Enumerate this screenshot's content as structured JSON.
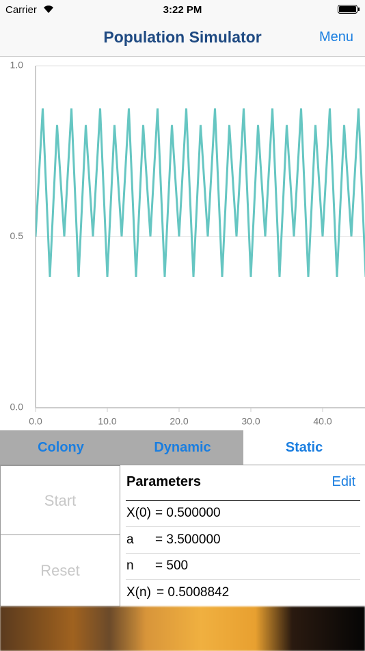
{
  "status_bar": {
    "carrier": "Carrier",
    "time": "3:22 PM"
  },
  "nav_bar": {
    "title": "Population Simulator",
    "menu": "Menu"
  },
  "chart_data": {
    "type": "line",
    "color": "#66c6c2",
    "grid": true,
    "x": [
      0,
      1,
      2,
      3,
      4,
      5,
      6,
      7,
      8,
      9,
      10,
      11,
      12,
      13,
      14,
      15,
      16,
      17,
      18,
      19,
      20,
      21,
      22,
      23,
      24,
      25,
      26,
      27,
      28,
      29,
      30,
      31,
      32,
      33,
      34,
      35,
      36,
      37,
      38,
      39,
      40,
      41,
      42,
      43,
      44,
      45,
      46
    ],
    "values": [
      0.5,
      0.875,
      0.3828,
      0.8269,
      0.5009,
      0.875,
      0.3828,
      0.8269,
      0.5009,
      0.875,
      0.3828,
      0.8269,
      0.5009,
      0.875,
      0.3828,
      0.8269,
      0.5009,
      0.875,
      0.3828,
      0.8269,
      0.5009,
      0.875,
      0.3828,
      0.8269,
      0.5009,
      0.875,
      0.3828,
      0.8269,
      0.5009,
      0.875,
      0.3828,
      0.8269,
      0.5009,
      0.875,
      0.3828,
      0.8269,
      0.5009,
      0.875,
      0.3828,
      0.8269,
      0.5009,
      0.875,
      0.3828,
      0.8269,
      0.5009,
      0.875,
      0.3828
    ],
    "xlim": [
      0,
      46
    ],
    "ylim": [
      0,
      1
    ],
    "xticks": [
      {
        "value": 0,
        "label": "0.0"
      },
      {
        "value": 10,
        "label": "10.0"
      },
      {
        "value": 20,
        "label": "20.0"
      },
      {
        "value": 30,
        "label": "30.0"
      },
      {
        "value": 40,
        "label": "40.0"
      }
    ],
    "yticks": [
      {
        "value": 0,
        "label": "0.0"
      },
      {
        "value": 0.5,
        "label": "0.5"
      },
      {
        "value": 1,
        "label": "1.0"
      }
    ]
  },
  "tabs": [
    "Colony",
    "Dynamic",
    "Static"
  ],
  "buttons": [
    "Start",
    "Reset"
  ],
  "parameters": {
    "title": "Parameters",
    "edit": "Edit",
    "rows": [
      [
        "X(0)",
        "= 0.500000"
      ],
      [
        "a",
        "= 3.500000"
      ],
      [
        "n",
        "= 500"
      ],
      [
        "X(n)",
        "= 0.5008842"
      ]
    ]
  }
}
